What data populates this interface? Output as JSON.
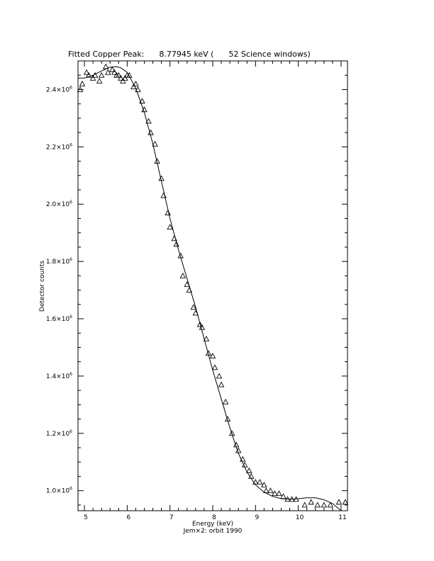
{
  "chart_data": {
    "type": "scatter",
    "title": "Fitted Copper Peak:      8.77945 keV (      52 Science windows)",
    "xlabel": "Energy (keV)",
    "ylabel": "Detector counts",
    "caption": "Jem×2: orbit 1990",
    "xlim": [
      4.85,
      11.15
    ],
    "ylim": [
      930000,
      2500000
    ],
    "x_ticks": [
      {
        "value": 5,
        "label": "5"
      },
      {
        "value": 6,
        "label": "6"
      },
      {
        "value": 7,
        "label": "7"
      },
      {
        "value": 8,
        "label": "8"
      },
      {
        "value": 9,
        "label": "9"
      },
      {
        "value": 10,
        "label": "10"
      },
      {
        "value": 11,
        "label": "11"
      }
    ],
    "y_ticks": [
      {
        "value": 1000000,
        "mantissa": "1.0×10",
        "exp": "6"
      },
      {
        "value": 1200000,
        "mantissa": "1.2×10",
        "exp": "6"
      },
      {
        "value": 1400000,
        "mantissa": "1.4×10",
        "exp": "6"
      },
      {
        "value": 1600000,
        "mantissa": "1.6×10",
        "exp": "6"
      },
      {
        "value": 1800000,
        "mantissa": "1.8×10",
        "exp": "6"
      },
      {
        "value": 2000000,
        "mantissa": "2.0×10",
        "exp": "6"
      },
      {
        "value": 2200000,
        "mantissa": "2.2×10",
        "exp": "6"
      },
      {
        "value": 2400000,
        "mantissa": "2.4×10",
        "exp": "6"
      }
    ],
    "series": [
      {
        "marker": "triangle",
        "x": [
          4.9,
          4.95,
          5.05,
          5.1,
          5.2,
          5.25,
          5.35,
          5.4,
          5.5,
          5.55,
          5.65,
          5.7,
          5.75,
          5.8,
          5.85,
          5.9,
          5.95,
          6.0,
          6.05,
          6.15,
          6.2,
          6.25,
          6.35,
          6.4,
          6.5,
          6.55,
          6.65,
          6.7,
          6.8,
          6.85,
          6.95,
          7.0,
          7.1,
          7.15,
          7.25,
          7.3,
          7.4,
          7.45,
          7.55,
          7.6,
          7.7,
          7.75,
          7.85,
          7.9,
          8.0,
          8.05,
          8.15,
          8.2,
          8.3,
          8.35,
          8.45,
          8.55,
          8.6,
          8.7,
          8.75,
          8.85,
          8.9,
          9.0,
          9.1,
          9.2,
          9.25,
          9.35,
          9.45,
          9.55,
          9.65,
          9.75,
          9.85,
          9.95,
          10.15,
          10.3,
          10.45,
          10.6,
          10.75,
          10.95,
          11.1
        ],
        "y": [
          2400000,
          2420000,
          2460000,
          2450000,
          2440000,
          2450000,
          2430000,
          2450000,
          2480000,
          2460000,
          2470000,
          2460000,
          2450000,
          2450000,
          2440000,
          2430000,
          2440000,
          2450000,
          2450000,
          2410000,
          2420000,
          2400000,
          2360000,
          2330000,
          2290000,
          2250000,
          2210000,
          2150000,
          2090000,
          2030000,
          1970000,
          1920000,
          1880000,
          1860000,
          1820000,
          1750000,
          1720000,
          1700000,
          1640000,
          1620000,
          1580000,
          1570000,
          1530000,
          1480000,
          1470000,
          1430000,
          1400000,
          1370000,
          1310000,
          1250000,
          1200000,
          1160000,
          1140000,
          1110000,
          1090000,
          1070000,
          1050000,
          1030000,
          1030000,
          1020000,
          1000000,
          1000000,
          990000,
          990000,
          980000,
          970000,
          970000,
          970000,
          950000,
          960000,
          950000,
          950000,
          950000,
          960000,
          960000
        ]
      },
      {
        "marker": "line",
        "x": [
          4.85,
          5.0,
          5.2,
          5.4,
          5.6,
          5.75,
          5.85,
          6.0,
          6.2,
          6.4,
          6.6,
          6.8,
          7.0,
          7.2,
          7.4,
          7.6,
          7.8,
          8.0,
          8.2,
          8.4,
          8.6,
          8.8,
          9.0,
          9.2,
          9.4,
          9.6,
          9.8,
          10.0,
          10.2,
          10.4,
          10.6,
          10.8,
          11.0,
          11.15
        ],
        "y": [
          2440000,
          2440000,
          2450000,
          2465000,
          2478000,
          2480000,
          2476000,
          2460000,
          2405000,
          2320000,
          2210000,
          2080000,
          1950000,
          1840000,
          1740000,
          1640000,
          1530000,
          1420000,
          1320000,
          1220000,
          1130000,
          1065000,
          1020000,
          995000,
          980000,
          972000,
          970000,
          972000,
          975000,
          975000,
          968000,
          955000,
          930000,
          900000
        ]
      }
    ]
  }
}
